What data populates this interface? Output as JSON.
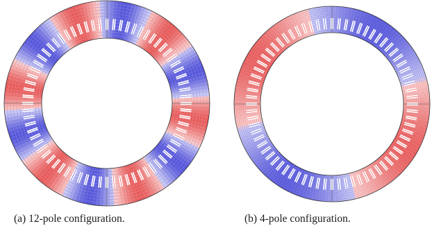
{
  "figure": {
    "panels": [
      {
        "caption": "(a) 12-pole configuration.",
        "poles": 12,
        "slots": 72
      },
      {
        "caption": "(b) 4-pole configuration.",
        "poles": 4,
        "slots": 72
      }
    ]
  },
  "colors": {
    "positive": "#e03030",
    "negative": "#2a2ad0",
    "slot": "#ffffff",
    "outline": "#333333"
  }
}
